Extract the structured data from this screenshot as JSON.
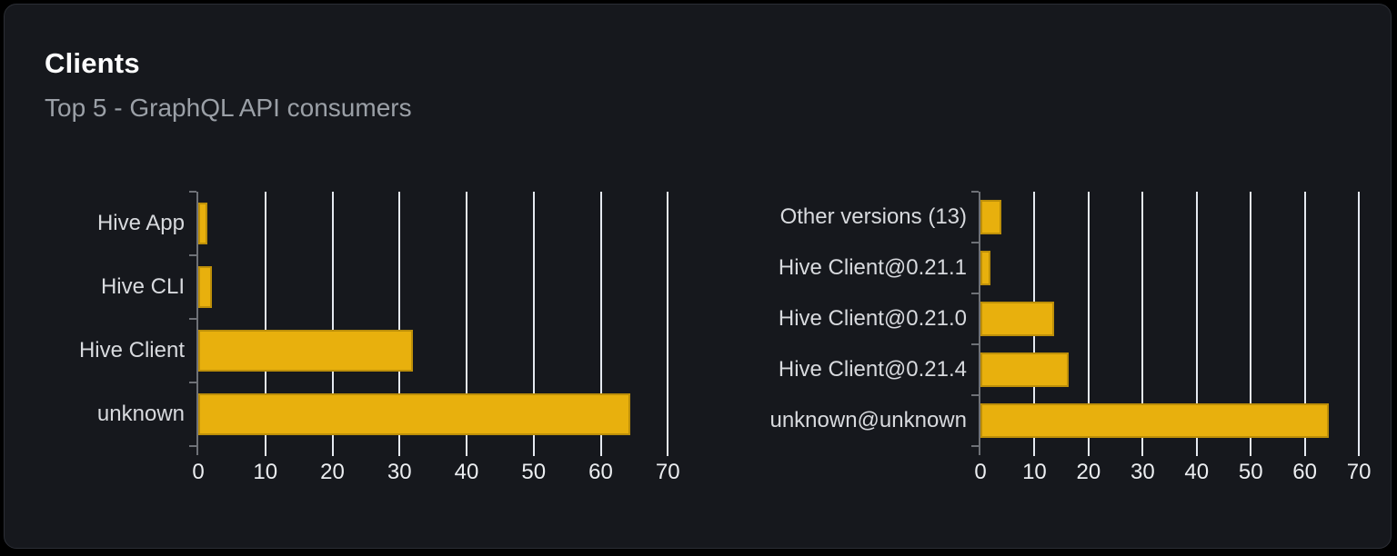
{
  "panel": {
    "title": "Clients",
    "subtitle": "Top 5 - GraphQL API consumers"
  },
  "colors": {
    "page_bg": "#000000",
    "panel_bg": "#16181d",
    "panel_border": "#2b2e35",
    "title": "#fdfdfe",
    "subtitle": "#9ba0a7",
    "bar": "#e8b00d",
    "gridline": "#e5e9f0",
    "axis": "#6e7177",
    "category_label": "#d8dade",
    "tick_label": "#eceef1"
  },
  "chart_data": [
    {
      "type": "bar",
      "orientation": "horizontal",
      "title": "",
      "categories": [
        "Hive App",
        "Hive CLI",
        "Hive Client",
        "unknown"
      ],
      "values": [
        1.4,
        2,
        32,
        64.4
      ],
      "xticks": [
        0,
        10,
        20,
        30,
        40,
        50,
        60,
        70
      ],
      "xlim": [
        0,
        72
      ],
      "grid": true,
      "legend": "none"
    },
    {
      "type": "bar",
      "orientation": "horizontal",
      "title": "",
      "categories": [
        "Other versions (13)",
        "Hive Client@0.21.1",
        "Hive Client@0.21.0",
        "Hive Client@0.21.4",
        "unknown@unknown"
      ],
      "values": [
        3.9,
        1.8,
        13.7,
        16.3,
        64.5
      ],
      "xticks": [
        0,
        10,
        20,
        30,
        40,
        50,
        60,
        70
      ],
      "xlim": [
        0,
        72
      ],
      "grid": true,
      "legend": "none"
    }
  ]
}
